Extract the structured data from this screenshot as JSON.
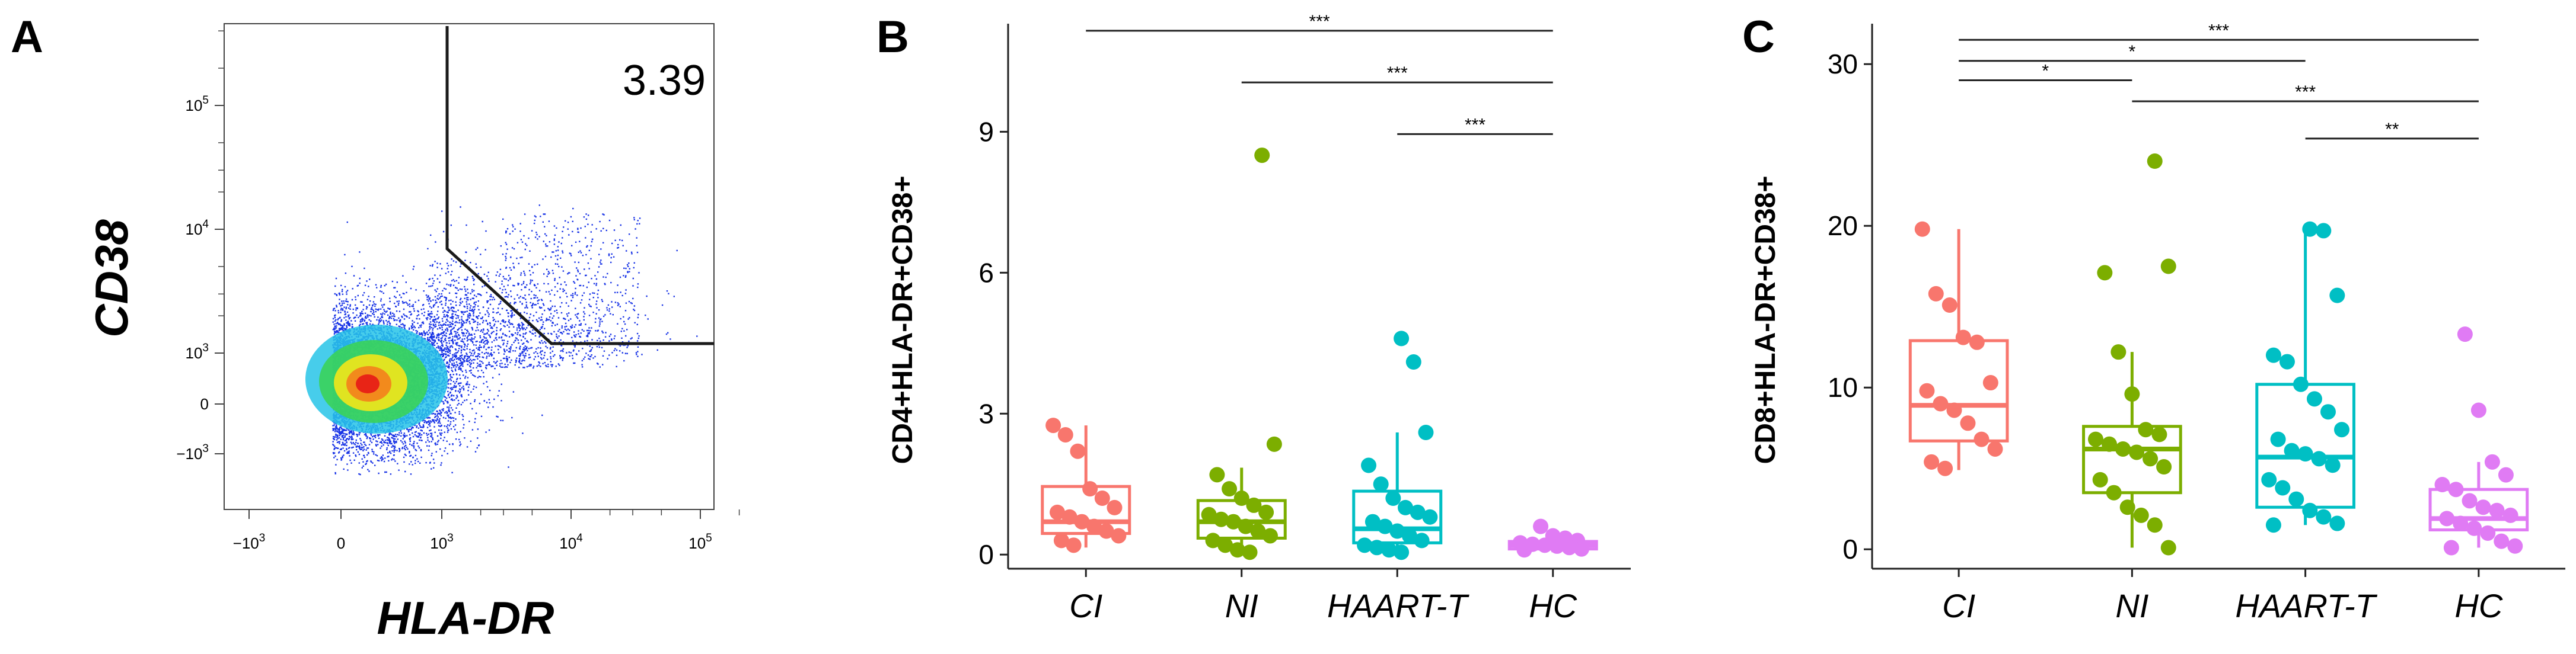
{
  "panels": {
    "A": {
      "letter": "A",
      "xlabel": "HLA-DR",
      "ylabel": "CD38",
      "gate_value": "3.39",
      "x_ticks": [
        {
          "base": "−10",
          "exp": "3",
          "pos": -1000
        },
        {
          "base": "0",
          "exp": "",
          "pos": 0
        },
        {
          "base": "10",
          "exp": "3",
          "pos": 1000
        },
        {
          "base": "10",
          "exp": "4",
          "pos": 10000
        },
        {
          "base": "10",
          "exp": "5",
          "pos": 100000
        }
      ],
      "y_ticks": [
        {
          "base": "−10",
          "exp": "3",
          "pos": -1000
        },
        {
          "base": "0",
          "exp": "",
          "pos": 0
        },
        {
          "base": "10",
          "exp": "3",
          "pos": 1000
        },
        {
          "base": "10",
          "exp": "4",
          "pos": 10000
        },
        {
          "base": "10",
          "exp": "5",
          "pos": 100000
        }
      ]
    },
    "B": {
      "letter": "B",
      "ylabel": "CD4+HLA-DR+CD38+"
    },
    "C": {
      "letter": "C",
      "ylabel": "CD8+HLA-DR+CD38+"
    }
  },
  "chart_data": [
    {
      "id": "B",
      "type": "box",
      "title": "",
      "xlabel": "",
      "ylabel": "CD4+HLA-DR+CD38+",
      "ylim": [
        -0.3,
        11.3
      ],
      "yticks": [
        0,
        3,
        6,
        9
      ],
      "categories": [
        "CI",
        "NI",
        "HAART-T",
        "HC"
      ],
      "colors": [
        "#F8766D",
        "#7CAE00",
        "#00BFC4",
        "#E07BF4"
      ],
      "boxes": [
        {
          "q1": 0.45,
          "median": 0.7,
          "q3": 1.45,
          "whisker_low": 0.15,
          "whisker_high": 2.75,
          "points": [
            2.75,
            2.55,
            2.2,
            1.4,
            1.2,
            1.0,
            0.9,
            0.8,
            0.7,
            0.6,
            0.5,
            0.4,
            0.3,
            0.2
          ]
        },
        {
          "q1": 0.35,
          "median": 0.7,
          "q3": 1.15,
          "whisker_low": 0.05,
          "whisker_high": 1.85,
          "points": [
            8.5,
            2.35,
            1.7,
            1.4,
            1.2,
            1.05,
            0.9,
            0.85,
            0.75,
            0.7,
            0.6,
            0.5,
            0.4,
            0.3,
            0.2,
            0.1,
            0.05
          ]
        },
        {
          "q1": 0.25,
          "median": 0.55,
          "q3": 1.35,
          "whisker_low": 0.05,
          "whisker_high": 2.6,
          "points": [
            4.6,
            4.1,
            2.6,
            1.9,
            1.5,
            1.2,
            1.0,
            0.9,
            0.8,
            0.7,
            0.6,
            0.5,
            0.4,
            0.3,
            0.2,
            0.15,
            0.1,
            0.05
          ]
        },
        {
          "q1": 0.12,
          "median": 0.2,
          "q3": 0.28,
          "whisker_low": 0.05,
          "whisker_high": 0.4,
          "points": [
            0.6,
            0.4,
            0.35,
            0.3,
            0.25,
            0.22,
            0.2,
            0.18,
            0.15,
            0.12,
            0.1
          ]
        }
      ],
      "significance": [
        {
          "from": 0,
          "to": 3,
          "label": "***",
          "y": 11.15
        },
        {
          "from": 1,
          "to": 3,
          "label": "***",
          "y": 10.05
        },
        {
          "from": 2,
          "to": 3,
          "label": "***",
          "y": 8.95
        }
      ]
    },
    {
      "id": "C",
      "type": "box",
      "title": "",
      "xlabel": "",
      "ylabel": "CD8+HLA-DR+CD38+",
      "ylim": [
        -1.2,
        32.5
      ],
      "yticks": [
        0,
        10,
        20,
        30
      ],
      "categories": [
        "CI",
        "NI",
        "HAART-T",
        "HC"
      ],
      "colors": [
        "#F8766D",
        "#7CAE00",
        "#00BFC4",
        "#E07BF4"
      ],
      "boxes": [
        {
          "q1": 6.7,
          "median": 8.9,
          "q3": 12.9,
          "whisker_low": 4.9,
          "whisker_high": 19.8,
          "points": [
            19.8,
            15.8,
            15.1,
            13.1,
            12.8,
            10.3,
            9.8,
            9.0,
            8.6,
            7.8,
            6.8,
            6.2,
            5.4,
            5.0
          ]
        },
        {
          "q1": 3.5,
          "median": 6.2,
          "q3": 7.6,
          "whisker_low": 0.1,
          "whisker_high": 12.2,
          "points": [
            24.0,
            17.5,
            17.1,
            12.2,
            9.6,
            7.4,
            7.1,
            6.8,
            6.5,
            6.2,
            6.0,
            5.6,
            5.1,
            4.3,
            3.5,
            2.6,
            2.1,
            1.5,
            0.1
          ]
        },
        {
          "q1": 2.6,
          "median": 5.7,
          "q3": 10.2,
          "whisker_low": 1.5,
          "whisker_high": 19.8,
          "points": [
            19.8,
            19.7,
            15.7,
            12.0,
            11.6,
            10.2,
            9.3,
            8.5,
            7.4,
            6.8,
            6.1,
            5.9,
            5.6,
            5.2,
            4.3,
            3.8,
            3.1,
            2.4,
            2.0,
            1.6,
            1.5
          ]
        },
        {
          "q1": 1.2,
          "median": 1.9,
          "q3": 3.7,
          "whisker_low": 0.1,
          "whisker_high": 5.4,
          "points": [
            13.3,
            8.6,
            5.4,
            4.6,
            4.0,
            3.7,
            3.0,
            2.6,
            2.4,
            2.1,
            1.9,
            1.6,
            1.3,
            1.0,
            0.5,
            0.2,
            0.1
          ]
        }
      ],
      "significance": [
        {
          "from": 0,
          "to": 3,
          "label": "***",
          "y": 31.5
        },
        {
          "from": 0,
          "to": 2,
          "label": "*",
          "y": 30.2
        },
        {
          "from": 0,
          "to": 1,
          "label": "*",
          "y": 29.0
        },
        {
          "from": 1,
          "to": 3,
          "label": "***",
          "y": 27.7
        },
        {
          "from": 2,
          "to": 3,
          "label": "**",
          "y": 25.4
        }
      ]
    }
  ]
}
